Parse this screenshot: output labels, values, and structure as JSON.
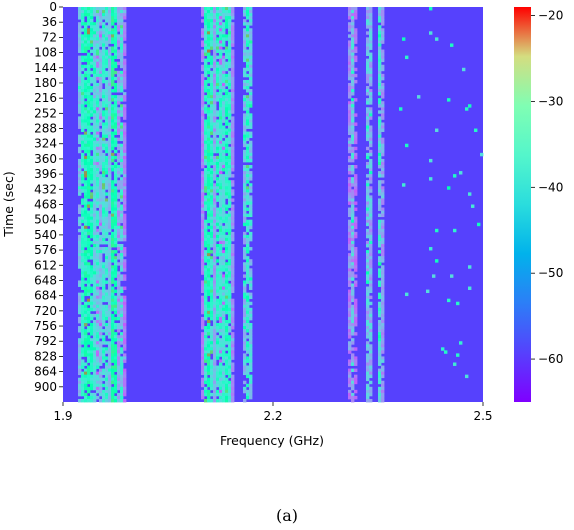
{
  "caption": "(a)",
  "chart_data": {
    "type": "heatmap",
    "title": "",
    "xlabel": "Frequency (GHz)",
    "ylabel": "Time (sec)",
    "x_range": [
      1.9,
      2.5
    ],
    "y_range": [
      0,
      936
    ],
    "x_ticks": [
      "1.9",
      "2.2",
      "2.5"
    ],
    "x_tick_values": [
      1.9,
      2.2,
      2.5
    ],
    "y_ticks": [
      "0",
      "36",
      "72",
      "108",
      "144",
      "180",
      "216",
      "252",
      "288",
      "324",
      "360",
      "396",
      "432",
      "468",
      "504",
      "540",
      "576",
      "612",
      "648",
      "684",
      "720",
      "756",
      "792",
      "828",
      "864",
      "900"
    ],
    "y_tick_values": [
      0,
      36,
      72,
      108,
      144,
      180,
      216,
      252,
      288,
      324,
      360,
      396,
      432,
      468,
      504,
      540,
      576,
      612,
      648,
      684,
      720,
      756,
      792,
      828,
      864,
      900
    ],
    "colorbar": {
      "range": [
        -65,
        -19
      ],
      "tick_values": [
        -20,
        -30,
        -40,
        -50,
        -60
      ],
      "ticks": [
        "−20",
        "−30",
        "−40",
        "−50",
        "−60"
      ],
      "colormap": "rainbow"
    },
    "background_level": -62,
    "bands": [
      {
        "center": 1.935,
        "width": 0.016,
        "level": -43,
        "peak": -28
      },
      {
        "center": 1.948,
        "width": 0.006,
        "level": -48,
        "peak": -35
      },
      {
        "center": 1.96,
        "width": 0.01,
        "level": -47,
        "peak": -32
      },
      {
        "center": 1.972,
        "width": 0.007,
        "level": -40,
        "peak": -30
      },
      {
        "center": 1.983,
        "width": 0.006,
        "level": -50,
        "peak": -36
      },
      {
        "center": 2.108,
        "width": 0.01,
        "level": -43,
        "peak": -29
      },
      {
        "center": 2.122,
        "width": 0.008,
        "level": -46,
        "peak": -34
      },
      {
        "center": 2.134,
        "width": 0.01,
        "level": -45,
        "peak": -35
      },
      {
        "center": 2.164,
        "width": 0.008,
        "level": -47,
        "peak": -34
      },
      {
        "center": 2.313,
        "width": 0.006,
        "level": -53,
        "peak": -44
      },
      {
        "center": 2.337,
        "width": 0.005,
        "level": -51,
        "peak": -40
      },
      {
        "center": 2.353,
        "width": 0.005,
        "level": -49,
        "peak": -41
      }
    ]
  }
}
